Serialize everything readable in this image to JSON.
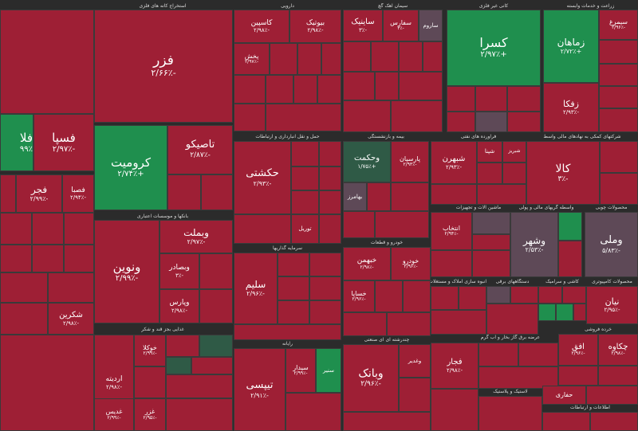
{
  "colors": {
    "red": "#9e1f35",
    "green": "#1f8f4e",
    "dark_green": "#2f5a46",
    "gray": "#5e4957",
    "background": "#2b2b2b"
  },
  "sectors": [
    {
      "id": "s0",
      "label": "استخراج کانه های فلزی"
    },
    {
      "id": "s1",
      "label": "دارویی"
    },
    {
      "id": "s2",
      "label": "سیمان آهک گچ"
    },
    {
      "id": "s3",
      "label": "کانی غیر فلزی"
    },
    {
      "id": "s4",
      "label": "زراعت و خدمات وابسته"
    },
    {
      "id": "s5",
      "label": "بانکها و موسسات اعتباری"
    },
    {
      "id": "s6",
      "label": "حمل و نقل انبارداری و ارتباطات"
    },
    {
      "id": "s7",
      "label": "بیمه و بازنشستگی"
    },
    {
      "id": "s8",
      "label": "فراورده های نفتی"
    },
    {
      "id": "s9",
      "label": "شرکتهای کمکی به نهادهای مالی واسط"
    },
    {
      "id": "s10",
      "label": "ماشین آلات و تجهیزات"
    },
    {
      "id": "s11",
      "label": "واسطه گریهای مالی و پولی"
    },
    {
      "id": "s12",
      "label": "محصولات چوبی"
    },
    {
      "id": "s13",
      "label": "خودرو و قطعات"
    },
    {
      "id": "s14",
      "label": "سرمایه گذاریها"
    },
    {
      "id": "s15",
      "label": "انبوه سازی املاک و مستغلات"
    },
    {
      "id": "s16",
      "label": "دستگاههای برقی"
    },
    {
      "id": "s17",
      "label": "کاشی و سرامیک"
    },
    {
      "id": "s18",
      "label": "محصولات کامپیوتری"
    },
    {
      "id": "s19",
      "label": "غذایی بجز قند و شکر"
    },
    {
      "id": "s20",
      "label": "رایانه"
    },
    {
      "id": "s21",
      "label": "چندرشته ای ای صنعتی"
    },
    {
      "id": "s22",
      "label": "عرضه برق گاز بخار و آب گرم"
    },
    {
      "id": "s23",
      "label": "خرده فروشی"
    },
    {
      "id": "s24",
      "label": "لاستیک و پلاستیک"
    },
    {
      "id": "s25",
      "label": "اطلاعات و ارتباطات"
    }
  ],
  "tiles": [
    {
      "name": "فزر",
      "change": "-۲/۶۶٪"
    },
    {
      "name": "فسپا",
      "change": "-۲/۹۷٪"
    },
    {
      "name": "فلا",
      "change": "۹۹٪"
    },
    {
      "name": "کرومیت",
      "change": "+۲/۷۴٪"
    },
    {
      "name": "تاصیکو",
      "change": "-۲/۸۷٪"
    },
    {
      "name": "فجر",
      "change": "-۲/۹۹٪"
    },
    {
      "name": "فصبا",
      "change": "-۲/۹۴٪"
    },
    {
      "name": "کاسپین",
      "change": "-۲/۹۸٪"
    },
    {
      "name": "بیوتیک",
      "change": "-۲/۹۸٪"
    },
    {
      "name": "پخش",
      "change": "-۲/۹۷٪"
    },
    {
      "name": "ساینیک",
      "change": "-۳٪"
    },
    {
      "name": "سفارس",
      "change": "-۳٪"
    },
    {
      "name": "ساروم",
      "change": "-۲/۹۶٪"
    },
    {
      "name": "کسرا",
      "change": "+۲/۹۷٪"
    },
    {
      "name": "زماهان",
      "change": "+۲/۷۲٪"
    },
    {
      "name": "زفکا",
      "change": "-۲/۹۳٪"
    },
    {
      "name": "سیمرغ",
      "change": "-۲/۹۶٪"
    },
    {
      "name": "حکشتی",
      "change": "-۲/۹۳٪"
    },
    {
      "name": "وحکمت",
      "change": "+۱/۷۵٪"
    },
    {
      "name": "پارسان",
      "change": "-۲/۹۶٪"
    },
    {
      "name": "شپنا",
      "change": "-۲/۹۸٪"
    },
    {
      "name": "شبریز",
      "change": "-۲/۹۸٪"
    },
    {
      "name": "شبهرن",
      "change": "-۲/۹۳٪"
    },
    {
      "name": "کالا",
      "change": "-۳٪"
    },
    {
      "name": "وبملت",
      "change": "-۲/۹۷٪"
    },
    {
      "name": "ونوین",
      "change": "-۲/۹۹٪"
    },
    {
      "name": "وبصادر",
      "change": "-۳٪"
    },
    {
      "name": "وپارس",
      "change": "-۲/۹۸٪"
    },
    {
      "name": "وشهر",
      "change": "-۲/۵۳٪"
    },
    {
      "name": "وملی",
      "change": "-۵/۸۳٪"
    },
    {
      "name": "وسپه",
      "change": "-۲/۹۳٪"
    },
    {
      "name": "خودرو",
      "change": "-۲/۹۶٪"
    },
    {
      "name": "خبهمن",
      "change": "-۲/۹۸٪"
    },
    {
      "name": "خساپا",
      "change": "-۲/۹۶٪"
    },
    {
      "name": "سلیم",
      "change": "-۲/۹۶٪"
    },
    {
      "name": "وغدیر",
      "change": "-۲/۹۸٪"
    },
    {
      "name": "وبانک",
      "change": "-۲/۹۶٪"
    },
    {
      "name": "تیپسی",
      "change": "-۲/۹۱٪"
    },
    {
      "name": "سیدار",
      "change": "-۲/۹۹٪"
    },
    {
      "name": "سنیر",
      "change": "-۲/۹۶٪"
    },
    {
      "name": "شکرین",
      "change": "-۲/۹۸٪"
    },
    {
      "name": "فجار",
      "change": "-۲/۹۸٪"
    },
    {
      "name": "افق",
      "change": "-۲/۹۶٪"
    },
    {
      "name": "چکاوه",
      "change": "-۲/۹۸٪"
    },
    {
      "name": "نیان",
      "change": "-۲/۹۵٪"
    },
    {
      "name": "حفاری",
      "change": "-۲/۹۶٪"
    },
    {
      "name": "بهامرز",
      "change": "-۲/۹۶٪"
    },
    {
      "name": "وکادو",
      "change": "-۲/۹۸٪"
    },
    {
      "name": "وشمال",
      "change": "-۲/۹۸٪"
    },
    {
      "name": "تاپیکو",
      "change": "-۲/۹۸٪"
    },
    {
      "name": "انتخاب",
      "change": "-۲/۹۴٪"
    },
    {
      "name": "توریل",
      "change": "-۲/۹۵٪"
    },
    {
      "name": "پارسیان",
      "change": "-۲/۹۳٪"
    },
    {
      "name": "کیمیاتک",
      "change": "-۲/۹۸٪"
    },
    {
      "name": "اردیته",
      "change": "-۲/۹۸٪"
    },
    {
      "name": "خوکلا",
      "change": "-۲/۹۹٪"
    },
    {
      "name": "غدیس",
      "change": "-۲/۹۹٪"
    },
    {
      "name": "غزر",
      "change": "-۲/۹۵٪"
    },
    {
      "name": "بورس",
      "change": "-۲/۹۹٪"
    },
    {
      "name": "کلوند",
      "change": "-۲/۹۶٪"
    },
    {
      "name": "فولاژ",
      "change": "-۲/۹۹٪"
    }
  ]
}
